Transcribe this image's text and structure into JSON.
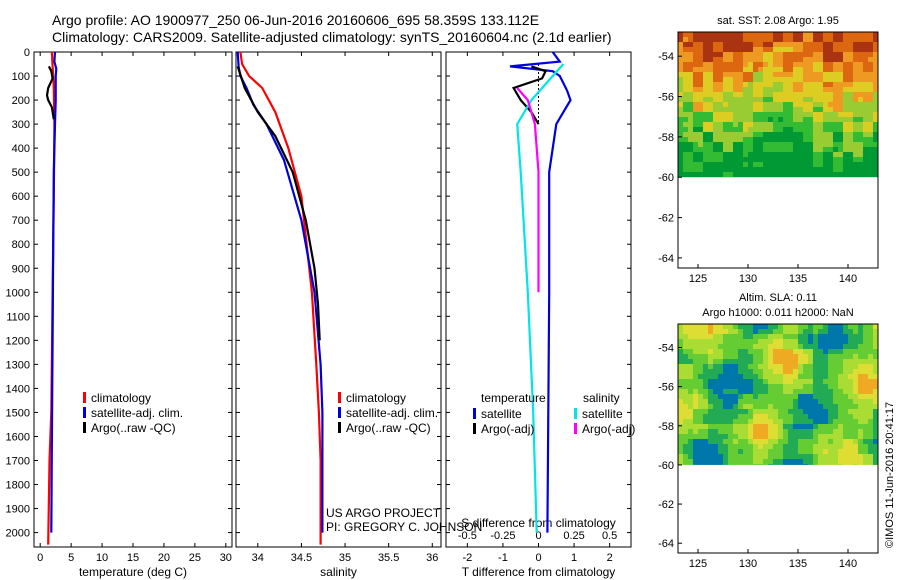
{
  "header": {
    "line1": "Argo profile: AO 1900977_250 06-Jun-2016 20160606_695 58.359S 133.112E",
    "line2": "Climatology: CARS2009. Satellite-adjusted climatology: synTS_20160604.nc (2.1d earlier)"
  },
  "colors": {
    "climatology": "#ff0000",
    "satellite": "#0000dd",
    "argo": "#000000",
    "sal_satellite": "#00e5e5",
    "sal_argo": "#ff00ff"
  },
  "depth_ticks": [
    0,
    100,
    200,
    300,
    400,
    500,
    600,
    700,
    800,
    900,
    1000,
    1100,
    1200,
    1300,
    1400,
    1500,
    1600,
    1700,
    1800,
    1900,
    2000
  ],
  "chart_data": [
    {
      "type": "line",
      "panel": "temperature",
      "xlabel": "temperature (deg C)",
      "ylabel": "",
      "xlim": [
        -1,
        31
      ],
      "ylim": [
        2060,
        0
      ],
      "x_ticks": [
        "0",
        "5",
        "10",
        "15",
        "20",
        "25",
        "30"
      ],
      "legend": [
        "climatology",
        "satellite-adj. clim.",
        "Argo(..raw -QC)"
      ],
      "series": [
        {
          "name": "climatology",
          "key": "climatology",
          "points": [
            [
              1.9,
              0
            ],
            [
              2.0,
              60
            ],
            [
              2.2,
              150
            ],
            [
              2.3,
              300
            ],
            [
              2.2,
              600
            ],
            [
              2.0,
              1000
            ],
            [
              1.8,
              1500
            ],
            [
              1.5,
              1700
            ],
            [
              1.3,
              2050
            ]
          ]
        },
        {
          "name": "satellite-adj. clim.",
          "key": "satellite",
          "points": [
            [
              2.4,
              0
            ],
            [
              2.3,
              40
            ],
            [
              2.6,
              70
            ],
            [
              2.5,
              100
            ],
            [
              2.5,
              200
            ],
            [
              2.4,
              300
            ],
            [
              2.2,
              500
            ],
            [
              2.1,
              800
            ],
            [
              2.0,
              1200
            ],
            [
              1.9,
              1600
            ],
            [
              1.8,
              2000
            ]
          ]
        },
        {
          "name": "Argo(..raw -QC)",
          "key": "argo",
          "points": [
            [
              1.4,
              60
            ],
            [
              1.8,
              80
            ],
            [
              2.0,
              110
            ],
            [
              1.3,
              150
            ],
            [
              1.1,
              180
            ],
            [
              1.3,
              200
            ],
            [
              1.9,
              230
            ],
            [
              2.2,
              280
            ]
          ]
        }
      ]
    },
    {
      "type": "line",
      "panel": "salinity",
      "xlabel": "salinity",
      "ylabel": "",
      "xlim": [
        33.75,
        36.1
      ],
      "ylim": [
        2060,
        0
      ],
      "x_ticks": [
        "34",
        "34.5",
        "35",
        "35.5",
        "36"
      ],
      "legend": [
        "climatology",
        "satellite-adj. clim.",
        "Argo(..raw -QC)"
      ],
      "annotation": [
        "US ARGO PROJECT",
        "PI: GREGORY C. JOHNSON"
      ],
      "series": [
        {
          "name": "climatology",
          "key": "climatology",
          "points": [
            [
              33.8,
              0
            ],
            [
              33.82,
              50
            ],
            [
              33.9,
              100
            ],
            [
              34.05,
              150
            ],
            [
              34.2,
              250
            ],
            [
              34.35,
              400
            ],
            [
              34.5,
              600
            ],
            [
              34.62,
              1000
            ],
            [
              34.67,
              1300
            ],
            [
              34.7,
              1500
            ],
            [
              34.72,
              1700
            ],
            [
              34.72,
              2050
            ]
          ]
        },
        {
          "name": "satellite-adj. clim.",
          "key": "satellite",
          "points": [
            [
              33.77,
              0
            ],
            [
              33.78,
              60
            ],
            [
              33.8,
              100
            ],
            [
              33.87,
              150
            ],
            [
              33.95,
              220
            ],
            [
              34.1,
              300
            ],
            [
              34.3,
              450
            ],
            [
              34.5,
              700
            ],
            [
              34.65,
              1000
            ],
            [
              34.72,
              1300
            ],
            [
              34.74,
              1500
            ],
            [
              34.74,
              2000
            ]
          ]
        },
        {
          "name": "Argo(..raw -QC)",
          "key": "argo",
          "points": [
            [
              33.77,
              60
            ],
            [
              33.85,
              150
            ],
            [
              34.0,
              250
            ],
            [
              34.2,
              350
            ],
            [
              34.4,
              500
            ],
            [
              34.55,
              700
            ],
            [
              34.65,
              900
            ],
            [
              34.69,
              1050
            ],
            [
              34.71,
              1200
            ]
          ]
        }
      ]
    },
    {
      "type": "line",
      "panel": "difference",
      "xlabel": "T difference from climatology",
      "xlabel2": "S difference from climatology",
      "xlim": [
        -2.6,
        2.6
      ],
      "ylim": [
        2060,
        0
      ],
      "x_ticks": [
        "-2",
        "-1",
        "0",
        "1",
        "2"
      ],
      "x2_ticks": [
        "-0.5",
        "-0.25",
        "0",
        "0.25",
        "0.5"
      ],
      "legend_temperature_title": "temperature",
      "legend_salinity_title": "salinity",
      "legend_temperature": [
        "satellite",
        "Argo(-adj)"
      ],
      "legend_salinity": [
        "satellite",
        "Argo(-adj)"
      ],
      "series": [
        {
          "name": "satellite",
          "key": "satellite",
          "points": [
            [
              0.4,
              0
            ],
            [
              0.6,
              40
            ],
            [
              -0.8,
              60
            ],
            [
              0.4,
              80
            ],
            [
              0.6,
              100
            ],
            [
              0.8,
              160
            ],
            [
              0.9,
              200
            ],
            [
              0.7,
              250
            ],
            [
              0.5,
              300
            ],
            [
              0.3,
              500
            ],
            [
              0.3,
              1000
            ],
            [
              0.25,
              2000
            ]
          ]
        },
        {
          "name": "Argo(-adj)",
          "key": "argo",
          "points": [
            [
              -0.2,
              60
            ],
            [
              0.2,
              80
            ],
            [
              0.1,
              110
            ],
            [
              -0.7,
              150
            ],
            [
              -0.5,
              200
            ],
            [
              -0.2,
              250
            ],
            [
              0.0,
              300
            ]
          ]
        },
        {
          "name": "satellite",
          "key": "sal_satellite",
          "points": [
            [
              0.7,
              50
            ],
            [
              0.4,
              100
            ],
            [
              -0.2,
              200
            ],
            [
              -0.6,
              300
            ],
            [
              -0.5,
              500
            ],
            [
              -0.3,
              1000
            ],
            [
              -0.15,
              1500
            ],
            [
              -0.05,
              2000
            ]
          ]
        },
        {
          "name": "Argo(-adj)",
          "key": "sal_argo",
          "points": [
            [
              -0.6,
              150
            ],
            [
              -0.3,
              200
            ],
            [
              -0.2,
              250
            ],
            [
              -0.1,
              300
            ],
            [
              0.0,
              500
            ],
            [
              0.0,
              1000
            ]
          ]
        }
      ]
    },
    {
      "type": "heatmap",
      "panel": "sst_map",
      "title": "sat. SST: 2.08 Argo: 1.95",
      "xlim": [
        123,
        143
      ],
      "ylim": [
        -64.5,
        -52.8
      ],
      "x_ticks": [
        "125",
        "130",
        "135",
        "140"
      ],
      "y_ticks": [
        "-54",
        "-56",
        "-58",
        "-60",
        "-62",
        "-64"
      ],
      "data_extent_lat": [
        -60,
        -52.8
      ],
      "palette": [
        "#009933",
        "#33bb33",
        "#99cc33",
        "#ddcc22",
        "#ee9922",
        "#dd6611",
        "#aa3311"
      ]
    },
    {
      "type": "heatmap",
      "panel": "sla_map",
      "title": "Altim. SLA: 0.11",
      "subtitle": "Argo h1000: 0.011 h2000: NaN",
      "xlim": [
        123,
        143
      ],
      "ylim": [
        -64.5,
        -52.8
      ],
      "x_ticks": [
        "125",
        "130",
        "135",
        "140"
      ],
      "y_ticks": [
        "-54",
        "-56",
        "-58",
        "-60",
        "-62",
        "-64"
      ],
      "data_extent_lat": [
        -60,
        -52.8
      ],
      "palette": [
        "#0077aa",
        "#22aa55",
        "#66cc33",
        "#aadd33",
        "#dddd33",
        "#eeaa22",
        "#dd5511"
      ]
    }
  ],
  "stamp": "©IMOS 11-Jun-2016 20:41:17"
}
